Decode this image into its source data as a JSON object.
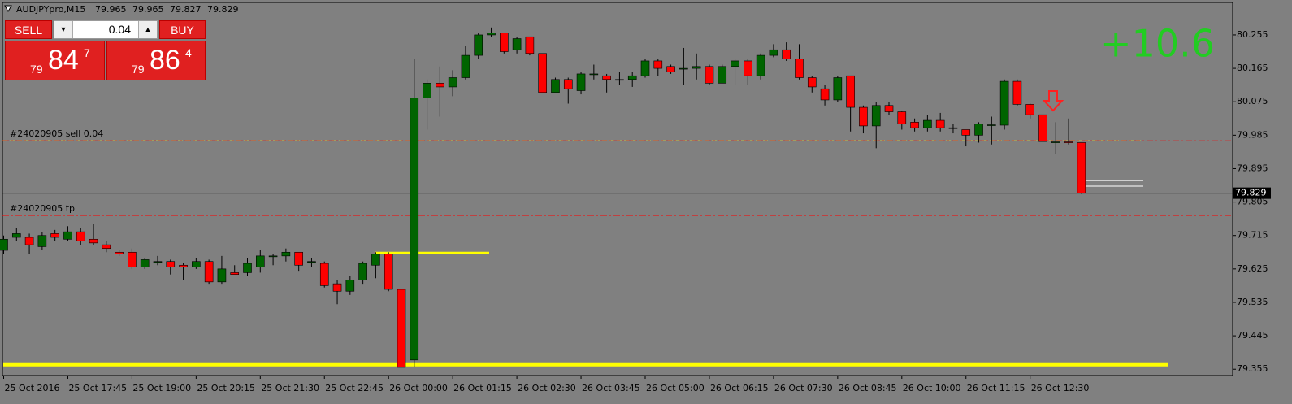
{
  "chart_data": {
    "type": "candlestick",
    "title": "AUDJPYpro,M15",
    "categories": [
      "25 Oct 2016",
      null,
      null,
      null,
      null,
      "25 Oct 17:45",
      null,
      null,
      null,
      null,
      "25 Oct 19:00",
      null,
      null,
      null,
      null,
      "25 Oct 20:15",
      null,
      null,
      null,
      null,
      "25 Oct 21:30",
      null,
      null,
      null,
      null,
      "25 Oct 22:45",
      null,
      null,
      null,
      null,
      "26 Oct 00:00",
      null,
      null,
      null,
      null,
      "26 Oct 01:15",
      null,
      null,
      null,
      null,
      "26 Oct 02:30",
      null,
      null,
      null,
      null,
      "26 Oct 03:45",
      null,
      null,
      null,
      null,
      "26 Oct 05:00",
      null,
      null,
      null,
      null,
      "26 Oct 06:15",
      null,
      null,
      null,
      null,
      "26 Oct 07:30",
      null,
      null,
      null,
      null,
      "26 Oct 08:45",
      null,
      null,
      null,
      null,
      "26 Oct 10:00",
      null,
      null,
      null,
      null,
      "26 Oct 11:15",
      null,
      null,
      null,
      null,
      "26 Oct 12:30",
      null,
      null,
      null,
      null
    ],
    "open": [
      79.675,
      79.71,
      79.71,
      79.685,
      79.72,
      79.705,
      79.725,
      79.705,
      79.69,
      79.67,
      79.67,
      79.63,
      79.645,
      79.645,
      79.635,
      79.63,
      79.645,
      79.59,
      79.615,
      79.615,
      79.63,
      79.66,
      79.66,
      79.67,
      79.645,
      79.64,
      79.585,
      79.565,
      79.595,
      79.635,
      79.665,
      79.57,
      79.38,
      80.085,
      80.125,
      80.115,
      80.14,
      80.2,
      80.255,
      80.26,
      80.215,
      80.25,
      80.205,
      80.1,
      80.135,
      80.105,
      80.15,
      80.145,
      80.135,
      80.135,
      80.145,
      80.185,
      80.17,
      80.165,
      80.165,
      80.17,
      80.125,
      80.17,
      80.185,
      80.145,
      80.2,
      80.215,
      80.19,
      80.14,
      80.11,
      80.08,
      80.145,
      80.06,
      80.01,
      80.065,
      80.048,
      80.02,
      80.005,
      80.025,
      80.005,
      80.0,
      79.985,
      80.013,
      80.012,
      80.13,
      80.068,
      80.04,
      79.967,
      79.967,
      79.965
    ],
    "high": [
      79.715,
      79.735,
      79.72,
      79.725,
      79.73,
      79.74,
      79.735,
      79.745,
      79.7,
      79.675,
      79.68,
      79.655,
      79.66,
      79.65,
      79.64,
      79.655,
      79.65,
      79.66,
      79.635,
      79.655,
      79.675,
      79.665,
      79.68,
      79.67,
      79.655,
      79.645,
      79.595,
      79.605,
      79.645,
      79.67,
      79.67,
      79.57,
      80.19,
      80.135,
      80.17,
      80.16,
      80.225,
      80.26,
      80.275,
      80.26,
      80.25,
      80.25,
      80.205,
      80.14,
      80.14,
      80.155,
      80.175,
      80.15,
      80.155,
      80.155,
      80.19,
      80.19,
      80.175,
      80.22,
      80.205,
      80.175,
      80.175,
      80.19,
      80.19,
      80.205,
      80.23,
      80.235,
      80.23,
      80.145,
      80.12,
      80.145,
      80.145,
      80.065,
      80.075,
      80.075,
      80.05,
      80.03,
      80.04,
      80.045,
      80.015,
      80.0,
      80.02,
      80.035,
      80.135,
      80.135,
      80.07,
      80.045,
      80.02,
      80.03,
      79.965
    ],
    "low": [
      79.665,
      79.7,
      79.665,
      79.675,
      79.7,
      79.7,
      79.69,
      79.69,
      79.67,
      79.66,
      79.625,
      79.625,
      79.635,
      79.61,
      79.595,
      79.625,
      79.585,
      79.585,
      79.61,
      79.605,
      79.615,
      79.635,
      79.645,
      79.62,
      79.63,
      79.575,
      79.53,
      79.555,
      79.585,
      79.6,
      79.565,
      79.36,
      79.36,
      80.0,
      80.035,
      80.09,
      80.135,
      80.19,
      80.25,
      80.205,
      80.205,
      80.2,
      80.1,
      80.1,
      80.07,
      80.095,
      80.135,
      80.1,
      80.12,
      80.115,
      80.14,
      80.145,
      80.15,
      80.12,
      80.135,
      80.12,
      80.125,
      80.12,
      80.12,
      80.135,
      80.195,
      80.185,
      80.135,
      80.1,
      80.065,
      80.075,
      79.995,
      79.99,
      79.95,
      80.04,
      80.0,
      79.995,
      79.995,
      79.995,
      79.99,
      79.955,
      79.965,
      79.96,
      80.0,
      80.065,
      80.03,
      79.96,
      79.935,
      79.96,
      79.827
    ],
    "close": [
      79.705,
      79.72,
      79.69,
      79.715,
      79.71,
      79.725,
      79.7,
      79.695,
      79.68,
      79.665,
      79.63,
      79.65,
      79.645,
      79.63,
      79.63,
      79.645,
      79.59,
      79.625,
      79.61,
      79.64,
      79.66,
      79.66,
      79.67,
      79.635,
      79.645,
      79.58,
      79.565,
      79.595,
      79.64,
      79.665,
      79.57,
      79.36,
      80.085,
      80.125,
      80.115,
      80.14,
      80.2,
      80.255,
      80.26,
      80.21,
      80.245,
      80.205,
      80.1,
      80.135,
      80.11,
      80.15,
      80.15,
      80.135,
      80.135,
      80.145,
      80.185,
      80.165,
      80.155,
      80.165,
      80.17,
      80.125,
      80.17,
      80.185,
      80.145,
      80.2,
      80.215,
      80.19,
      80.14,
      80.115,
      80.08,
      80.14,
      80.06,
      80.01,
      80.065,
      80.048,
      80.015,
      80.005,
      80.025,
      80.005,
      80.005,
      79.985,
      80.015,
      80.013,
      80.13,
      80.068,
      80.04,
      79.968,
      79.967,
      79.965,
      79.829
    ],
    "up_color": "#006400",
    "down_color": "#ff0000",
    "ylim": [
      79.338,
      80.349
    ],
    "yticks": [
      80.255,
      80.165,
      80.075,
      79.985,
      79.895,
      79.805,
      79.715,
      79.625,
      79.535,
      79.445,
      79.355
    ],
    "grid": false,
    "levels": [
      {
        "label": "#24020905 sell 0.04",
        "value": 79.97,
        "color": "#ffff00"
      },
      {
        "label": "#24020905 tp",
        "value": 79.769,
        "color": "#ff0000"
      }
    ],
    "stop_line": {
      "value": 79.97,
      "color": "#ff0000"
    },
    "objects": [
      {
        "value": 79.368,
        "color": "#ffff00"
      },
      {
        "value": 79.668,
        "color": "#ffff00"
      },
      {
        "value": 79.863,
        "color": "#ffffff"
      },
      {
        "value": 79.848,
        "color": "#ffffff"
      }
    ],
    "profit": "+10.6"
  },
  "trade_panel": {
    "sell": "SELL",
    "buy": "BUY",
    "lot": "0.04",
    "sell_price": {
      "head": "79",
      "main": "84",
      "tail": "7"
    },
    "buy_price": {
      "head": "79",
      "main": "86",
      "tail": "4"
    }
  }
}
